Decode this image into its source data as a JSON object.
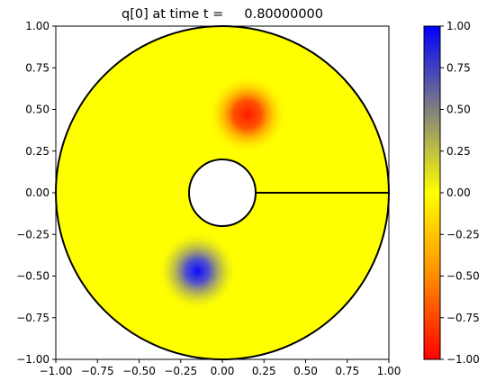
{
  "chart_data": {
    "type": "heatmap",
    "title": "q[0] at time t =     0.80000000",
    "xlabel": "",
    "ylabel": "",
    "xlim": [
      -1.0,
      1.0
    ],
    "ylim": [
      -1.0,
      1.0
    ],
    "x_ticks": [
      "−1.00",
      "−0.75",
      "−0.50",
      "−0.25",
      "0.00",
      "0.25",
      "0.50",
      "0.75",
      "1.00"
    ],
    "y_ticks": [
      "−1.00",
      "−0.75",
      "−0.50",
      "−0.25",
      "0.00",
      "0.25",
      "0.50",
      "0.75",
      "1.00"
    ],
    "x_tick_values": [
      -1.0,
      -0.75,
      -0.5,
      -0.25,
      0.0,
      0.25,
      0.5,
      0.75,
      1.0
    ],
    "y_tick_values": [
      -1.0,
      -0.75,
      -0.5,
      -0.25,
      0.0,
      0.25,
      0.5,
      0.75,
      1.0
    ],
    "domain": {
      "shape": "annulus",
      "outer_radius": 1.0,
      "inner_radius": 0.2,
      "cut_line": {
        "from": [
          0.2,
          0.0
        ],
        "to": [
          1.0,
          0.0
        ]
      }
    },
    "field_background_value": 0.0,
    "blobs": [
      {
        "name": "negative",
        "center": [
          0.15,
          0.47
        ],
        "peak_value": -0.95
      },
      {
        "name": "positive",
        "center": [
          -0.15,
          -0.47
        ],
        "peak_value": 0.95
      }
    ],
    "colorbar": {
      "range": [
        -1.0,
        1.0
      ],
      "ticks": [
        "−1.00",
        "−0.75",
        "−0.50",
        "−0.25",
        "0.00",
        "0.25",
        "0.50",
        "0.75",
        "1.00"
      ],
      "tick_values": [
        -1.0,
        -0.75,
        -0.5,
        -0.25,
        0.0,
        0.25,
        0.5,
        0.75,
        1.0
      ],
      "colors": {
        "min": "#ff0000",
        "low": "#ff8c00",
        "mid": "#ffff00",
        "high": "#808080",
        "max": "#0000ff"
      }
    },
    "grid": false
  }
}
